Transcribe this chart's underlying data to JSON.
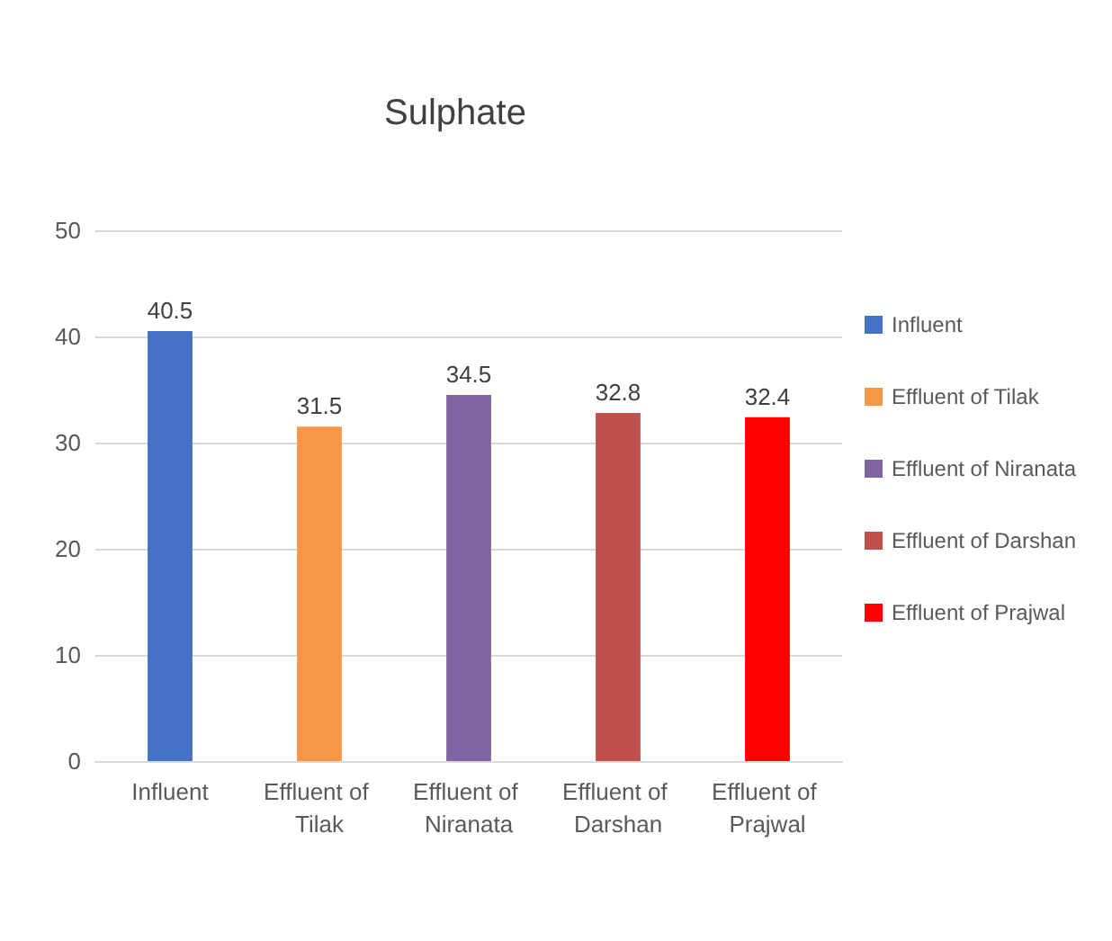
{
  "chart_data": {
    "type": "bar",
    "title": "Sulphate",
    "stacked": true,
    "categories": [
      "Influent",
      "Effluent of Tilak",
      "Effluent of Niranata",
      "Effluent of Darshan",
      "Effluent of Prajwal"
    ],
    "series": [
      {
        "name": "Influent",
        "color": "#4472c4",
        "values": [
          40.5,
          null,
          null,
          null,
          null
        ]
      },
      {
        "name": "Effluent of Tilak",
        "color": "#f79646",
        "values": [
          null,
          31.5,
          null,
          null,
          null
        ]
      },
      {
        "name": "Effluent of Niranata",
        "color": "#8064a2",
        "values": [
          null,
          null,
          34.5,
          null,
          null
        ]
      },
      {
        "name": "Effluent of Darshan",
        "color": "#c0504d",
        "values": [
          null,
          null,
          null,
          32.8,
          null
        ]
      },
      {
        "name": "Effluent of Prajwal",
        "color": "#ff0000",
        "values": [
          null,
          null,
          null,
          null,
          32.4
        ]
      }
    ],
    "ylim": [
      0,
      50
    ],
    "yticks": [
      0,
      10,
      20,
      30,
      40,
      50
    ],
    "grid": "y",
    "legend": "right",
    "data_labels": true
  }
}
